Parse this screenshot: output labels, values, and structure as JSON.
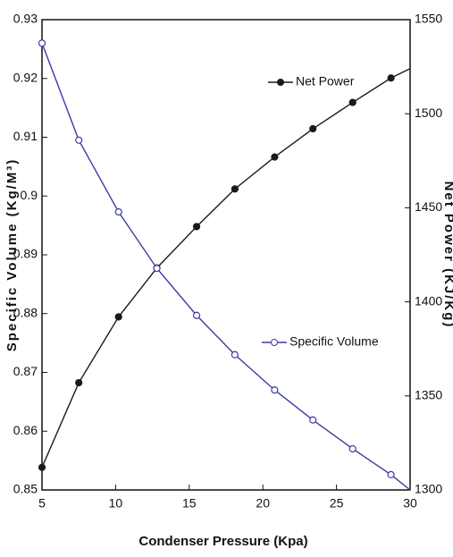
{
  "chart_data": {
    "type": "line",
    "xlabel": "Condenser Pressure (Kpa)",
    "ylabel": "Specific Volume (Kg/M³)",
    "y2label": "Net Power (KJ/Kg)",
    "x": [
      5,
      7.5,
      10.2,
      12.8,
      15.5,
      18.1,
      20.8,
      23.4,
      26.1,
      28.7,
      30
    ],
    "series": [
      {
        "name": "Net Power",
        "color": "#1a1a1a",
        "axis": "y2",
        "marker": "filled",
        "values": [
          1312,
          1357,
          1392,
          1418,
          1440,
          1460,
          1477,
          1492,
          1506,
          1519,
          1524
        ]
      },
      {
        "name": "Specific Volume",
        "color": "#3b3ba6",
        "marker": "open",
        "values": [
          0.926,
          0.9095,
          0.8973,
          0.8877,
          0.8797,
          0.873,
          0.867,
          0.8619,
          0.857,
          0.8526,
          0.85
        ]
      }
    ],
    "xlim": [
      5,
      30
    ],
    "xticks": [
      5,
      10,
      15,
      20,
      25,
      30
    ],
    "ylim": [
      0.85,
      0.93
    ],
    "yticks": [
      0.85,
      0.86,
      0.87,
      0.88,
      0.89,
      0.9,
      0.91,
      0.92,
      0.93
    ],
    "y2lim": [
      1300,
      1550
    ],
    "y2ticks": [
      1300,
      1350,
      1400,
      1450,
      1500,
      1550
    ]
  }
}
